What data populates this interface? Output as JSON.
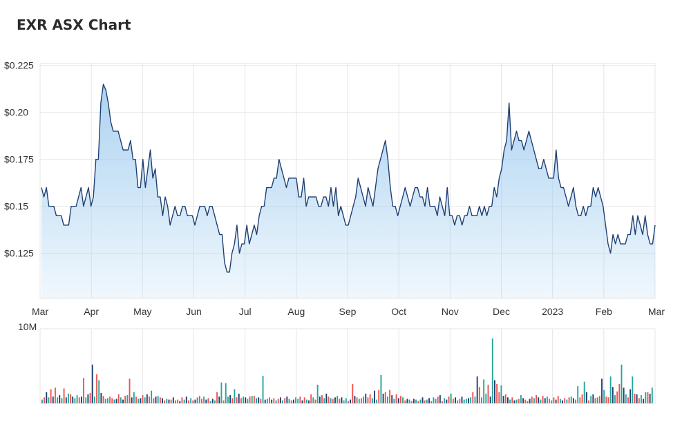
{
  "page": {
    "title": "EXR ASX Chart"
  },
  "colors": {
    "price_line": "#1f3f73",
    "area_top": "#9ecbef",
    "area_bottom": "#ffffff",
    "grid": "#e6e6e6",
    "vol_up": "#26a69a",
    "vol_down": "#ef5350",
    "vol_neutral": "#1f3f73"
  },
  "chart_data": [
    {
      "type": "area",
      "title": "EXR ASX Chart",
      "xlabel": "",
      "ylabel": "",
      "ylim": [
        0.101,
        0.226
      ],
      "yticks": [
        0.125,
        0.15,
        0.175,
        0.2,
        0.225
      ],
      "ytick_labels": [
        "$0.125",
        "$0.15",
        "$0.175",
        "$0.20",
        "$0.225"
      ],
      "xtick_labels": [
        "Mar",
        "Apr",
        "May",
        "Jun",
        "Jul",
        "Aug",
        "Sep",
        "Oct",
        "Nov",
        "Dec",
        "2023",
        "Feb",
        "Mar"
      ],
      "grid": true,
      "values": [
        0.16,
        0.155,
        0.16,
        0.15,
        0.15,
        0.15,
        0.145,
        0.145,
        0.145,
        0.14,
        0.14,
        0.14,
        0.15,
        0.15,
        0.15,
        0.155,
        0.16,
        0.15,
        0.155,
        0.16,
        0.15,
        0.155,
        0.175,
        0.175,
        0.205,
        0.215,
        0.212,
        0.205,
        0.195,
        0.19,
        0.19,
        0.19,
        0.185,
        0.18,
        0.18,
        0.18,
        0.185,
        0.175,
        0.175,
        0.16,
        0.16,
        0.175,
        0.16,
        0.17,
        0.18,
        0.165,
        0.17,
        0.155,
        0.155,
        0.145,
        0.155,
        0.15,
        0.14,
        0.145,
        0.15,
        0.145,
        0.145,
        0.15,
        0.15,
        0.145,
        0.145,
        0.145,
        0.14,
        0.145,
        0.15,
        0.15,
        0.15,
        0.145,
        0.15,
        0.15,
        0.145,
        0.14,
        0.135,
        0.135,
        0.12,
        0.115,
        0.115,
        0.125,
        0.13,
        0.14,
        0.125,
        0.13,
        0.13,
        0.14,
        0.13,
        0.135,
        0.14,
        0.135,
        0.145,
        0.15,
        0.15,
        0.16,
        0.16,
        0.16,
        0.165,
        0.165,
        0.175,
        0.17,
        0.165,
        0.16,
        0.165,
        0.165,
        0.165,
        0.165,
        0.155,
        0.155,
        0.165,
        0.15,
        0.155,
        0.155,
        0.155,
        0.155,
        0.15,
        0.15,
        0.155,
        0.155,
        0.15,
        0.16,
        0.15,
        0.16,
        0.145,
        0.15,
        0.145,
        0.14,
        0.14,
        0.145,
        0.15,
        0.155,
        0.165,
        0.16,
        0.155,
        0.15,
        0.16,
        0.155,
        0.15,
        0.16,
        0.17,
        0.175,
        0.18,
        0.185,
        0.175,
        0.16,
        0.15,
        0.15,
        0.145,
        0.15,
        0.155,
        0.16,
        0.155,
        0.15,
        0.155,
        0.16,
        0.16,
        0.155,
        0.155,
        0.15,
        0.16,
        0.15,
        0.15,
        0.15,
        0.145,
        0.155,
        0.15,
        0.145,
        0.16,
        0.145,
        0.145,
        0.14,
        0.145,
        0.145,
        0.14,
        0.145,
        0.145,
        0.15,
        0.145,
        0.145,
        0.145,
        0.15,
        0.145,
        0.15,
        0.145,
        0.15,
        0.15,
        0.16,
        0.155,
        0.165,
        0.17,
        0.18,
        0.185,
        0.205,
        0.18,
        0.185,
        0.19,
        0.185,
        0.185,
        0.18,
        0.185,
        0.19,
        0.185,
        0.18,
        0.175,
        0.17,
        0.17,
        0.175,
        0.17,
        0.165,
        0.165,
        0.165,
        0.18,
        0.165,
        0.16,
        0.16,
        0.155,
        0.15,
        0.155,
        0.16,
        0.15,
        0.145,
        0.145,
        0.15,
        0.145,
        0.15,
        0.15,
        0.16,
        0.155,
        0.16,
        0.155,
        0.15,
        0.14,
        0.13,
        0.125,
        0.135,
        0.13,
        0.135,
        0.13,
        0.13,
        0.13,
        0.135,
        0.135,
        0.145,
        0.135,
        0.145,
        0.14,
        0.135,
        0.145,
        0.135,
        0.13,
        0.13,
        0.14
      ]
    },
    {
      "type": "bar",
      "title": "",
      "ylim": [
        0,
        10
      ],
      "yticks": [
        10
      ],
      "ytick_labels": [
        "10M"
      ],
      "series_colors_key": "up/down/neutral",
      "values": [
        0.5,
        0.8,
        1.5,
        0.8,
        1.9,
        0.9,
        2.1,
        0.8,
        1.1,
        0.7,
        2.0,
        0.8,
        1.3,
        1.2,
        0.9,
        0.7,
        1.1,
        0.8,
        0.9,
        3.4,
        0.8,
        1.2,
        1.4,
        5.2,
        0.9,
        3.9,
        3.1,
        1.4,
        1.0,
        0.6,
        0.7,
        0.9,
        0.7,
        0.5,
        0.6,
        1.2,
        0.8,
        0.5,
        1.0,
        1.1,
        3.3,
        0.8,
        1.5,
        0.9,
        0.6,
        0.7,
        1.1,
        0.8,
        1.2,
        0.9,
        1.7,
        0.7,
        0.9,
        1.0,
        0.8,
        0.7,
        0.4,
        0.6,
        0.5,
        0.5,
        0.8,
        0.4,
        0.5,
        0.3,
        0.8,
        0.5,
        0.9,
        0.4,
        0.7,
        0.4,
        0.5,
        0.8,
        1.0,
        0.6,
        0.9,
        0.5,
        0.7,
        0.3,
        0.6,
        0.4,
        1.5,
        0.9,
        2.8,
        0.4,
        2.7,
        0.9,
        1.1,
        0.7,
        1.9,
        0.8,
        1.3,
        0.7,
        0.9,
        0.8,
        0.6,
        0.9,
        1.0,
        1.0,
        0.7,
        0.8,
        0.6,
        3.7,
        0.5,
        0.6,
        0.8,
        0.5,
        0.7,
        0.4,
        0.6,
        0.8,
        0.4,
        0.7,
        0.9,
        0.6,
        0.4,
        0.5,
        0.8,
        0.6,
        0.9,
        0.4,
        0.8,
        0.5,
        0.4,
        1.2,
        0.8,
        0.5,
        2.5,
        0.9,
        1.1,
        0.7,
        1.3,
        0.9,
        0.7,
        0.6,
        0.8,
        1.0,
        0.6,
        0.8,
        0.4,
        0.7,
        0.3,
        0.5,
        2.6,
        1.0,
        0.8,
        0.6,
        0.7,
        0.9,
        1.3,
        0.8,
        1.2,
        0.7,
        1.7,
        0.5,
        1.8,
        3.8,
        1.3,
        1.5,
        0.9,
        1.8,
        1.1,
        0.6,
        1.2,
        0.7,
        1.0,
        0.8,
        0.4,
        0.6,
        0.5,
        0.3,
        0.6,
        0.5,
        0.3,
        0.5,
        0.8,
        0.4,
        0.5,
        0.7,
        0.3,
        0.8,
        0.6,
        0.9,
        1.1,
        0.3,
        0.7,
        0.5,
        0.9,
        1.3,
        0.6,
        0.8,
        0.4,
        0.6,
        0.9,
        0.5,
        0.6,
        0.7,
        0.8,
        1.5,
        0.9,
        3.6,
        2.2,
        0.8,
        3.2,
        1.3,
        2.5,
        0.9,
        8.7,
        3.1,
        2.6,
        1.5,
        2.4,
        1.0,
        1.2,
        0.8,
        0.5,
        0.8,
        0.4,
        0.5,
        0.6,
        1.1,
        0.7,
        0.5,
        0.3,
        0.6,
        0.9,
        0.7,
        1.1,
        0.8,
        0.5,
        1.0,
        0.7,
        0.9,
        0.6,
        0.4,
        0.8,
        0.5,
        1.0,
        0.6,
        0.4,
        0.7,
        0.5,
        0.8,
        0.9,
        0.7,
        0.5,
        2.3,
        0.8,
        1.2,
        2.9,
        1.5,
        0.4,
        1.0,
        1.2,
        0.7,
        0.8,
        1.0,
        3.3,
        1.8,
        0.9,
        0.8,
        3.6,
        2.2,
        1.1,
        1.6,
        2.6,
        5.2,
        2.1,
        1.2,
        0.8,
        1.9,
        3.6,
        1.3,
        1.2,
        0.7,
        1.1,
        0.6,
        1.5,
        1.5,
        1.3,
        2.1
      ],
      "directions": [
        "u",
        "d",
        "n",
        "u",
        "d",
        "n",
        "d",
        "u",
        "n",
        "u",
        "d",
        "n",
        "u",
        "d",
        "n",
        "u",
        "u",
        "d",
        "n",
        "d",
        "u",
        "n",
        "d",
        "n",
        "u",
        "d",
        "u",
        "n",
        "d",
        "u",
        "u",
        "d",
        "d",
        "u",
        "n",
        "d",
        "u",
        "n",
        "d",
        "u",
        "d",
        "n",
        "u",
        "d",
        "u",
        "n",
        "d",
        "u",
        "n",
        "d",
        "u",
        "d",
        "n",
        "u",
        "d",
        "n",
        "d",
        "u",
        "n",
        "d",
        "n",
        "u",
        "d",
        "n",
        "d",
        "u",
        "n",
        "d",
        "u",
        "d",
        "n",
        "u",
        "d",
        "d",
        "u",
        "n",
        "d",
        "u",
        "n",
        "u",
        "d",
        "n",
        "u",
        "d",
        "u",
        "u",
        "n",
        "d",
        "u",
        "d",
        "n",
        "d",
        "u",
        "n",
        "u",
        "d",
        "u",
        "d",
        "u",
        "n",
        "d",
        "u",
        "n",
        "u",
        "d",
        "n",
        "d",
        "u",
        "d",
        "n",
        "u",
        "d",
        "n",
        "u",
        "d",
        "n",
        "u",
        "u",
        "d",
        "n",
        "d",
        "u",
        "n",
        "d",
        "u",
        "d",
        "u",
        "n",
        "d",
        "u",
        "n",
        "d",
        "u",
        "d",
        "n",
        "u",
        "d",
        "n",
        "u",
        "u",
        "d",
        "n",
        "d",
        "n",
        "d",
        "u",
        "d",
        "u",
        "n",
        "d",
        "d",
        "u",
        "n",
        "u",
        "d",
        "u",
        "n",
        "d",
        "u",
        "d",
        "n",
        "u",
        "d",
        "n",
        "d",
        "u",
        "d",
        "n",
        "u",
        "d",
        "n",
        "u",
        "d",
        "u",
        "n",
        "d",
        "u",
        "n",
        "d",
        "u",
        "u",
        "d",
        "n",
        "d",
        "u",
        "n",
        "d",
        "u",
        "d",
        "n",
        "u",
        "d",
        "n",
        "u",
        "u",
        "n",
        "u",
        "d",
        "u",
        "n",
        "d",
        "u",
        "u",
        "u",
        "d",
        "n",
        "u",
        "n",
        "d",
        "d",
        "u",
        "n",
        "d",
        "n",
        "u",
        "d",
        "n",
        "u",
        "d",
        "u",
        "n",
        "d",
        "u",
        "n",
        "d",
        "u",
        "d",
        "n",
        "u",
        "d",
        "n",
        "u",
        "d",
        "u",
        "d",
        "n",
        "d",
        "u",
        "n",
        "d",
        "u",
        "d",
        "u",
        "n",
        "d",
        "u",
        "d",
        "d",
        "u",
        "n",
        "d",
        "u",
        "n",
        "d",
        "u",
        "d",
        "n",
        "u",
        "d",
        "d",
        "u",
        "n",
        "u",
        "d",
        "d",
        "u",
        "n"
      ]
    }
  ]
}
